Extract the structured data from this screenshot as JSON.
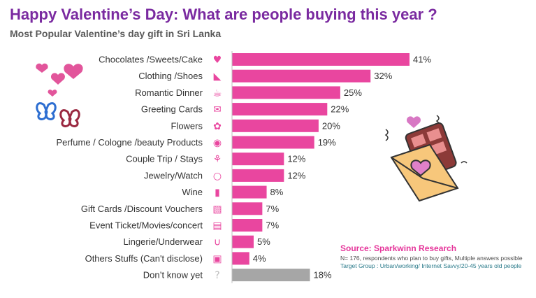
{
  "header": {
    "title": "Happy Valentine’s Day: What are people buying this year ?",
    "subtitle": "Most Popular Valentine’s day gift in Sri Lanka"
  },
  "footer": {
    "source": "Source: Sparkwinn Research",
    "note_sample": "N= 176, respondents who plan to buy gifts, Multiple answers possible",
    "note_target": "Target Group : Urban/working/ Internet Savvy/20-45 years old people"
  },
  "colors": {
    "title": "#7a2aa0",
    "bar_main": "#e9469f",
    "bar_neutral": "#a6a6a6",
    "source": "#e5359a"
  },
  "chart_data": {
    "type": "bar",
    "orientation": "horizontal",
    "categories": [
      "Chocolates /Sweets/Cake",
      "Clothing /Shoes",
      "Romantic Dinner",
      "Greeting Cards",
      "Flowers",
      "Perfume / Cologne /beauty Products",
      "Couple Trip / Stays",
      "Jewelry/Watch",
      "Wine",
      "Gift Cards /Discount Vouchers",
      "Event Ticket/Movies/concert",
      "Lingerie/Underwear",
      "Others Stuffs (Can't disclose)",
      "Don’t know yet"
    ],
    "values": [
      41,
      32,
      25,
      22,
      20,
      19,
      12,
      12,
      8,
      7,
      7,
      5,
      4,
      18
    ],
    "value_labels": [
      "41%",
      "32%",
      "25%",
      "22%",
      "20%",
      "19%",
      "12%",
      "12%",
      "8%",
      "7%",
      "7%",
      "5%",
      "4%",
      "18%"
    ],
    "icons": [
      "chocolate-box-icon",
      "high-heel-icon",
      "wine-glasses-icon",
      "greeting-card-icon",
      "flower-bouquet-icon",
      "perfume-bottle-icon",
      "palm-tree-icon",
      "ring-icon",
      "wine-bottle-icon",
      "voucher-icon",
      "ticket-icon",
      "bra-icon",
      "gift-box-icon",
      "question-mark-icon"
    ],
    "bar_colors": [
      "#e9469f",
      "#e9469f",
      "#e9469f",
      "#e9469f",
      "#e9469f",
      "#e9469f",
      "#e9469f",
      "#e9469f",
      "#e9469f",
      "#e9469f",
      "#e9469f",
      "#e9469f",
      "#e9469f",
      "#a6a6a6"
    ],
    "xlim": [
      0,
      41
    ],
    "grid": false,
    "legend": "none"
  }
}
